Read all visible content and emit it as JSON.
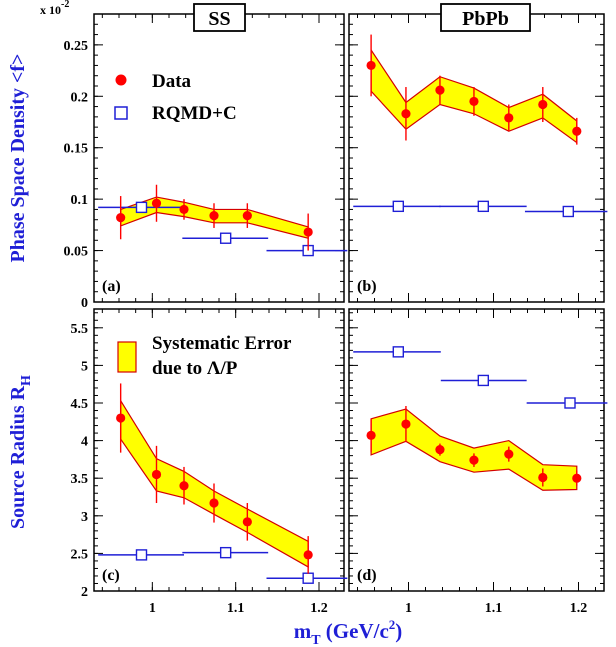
{
  "chart_data": {
    "type": "scatter",
    "xlabel": "m",
    "xlabel_sub": "T",
    "xlabel_unit_pre": " (GeV/c",
    "xlabel_unit_sup": "2",
    "xlabel_unit_post": ")",
    "xlim": [
      0.93,
      1.23
    ],
    "xticks": [
      1,
      1.1,
      1.2
    ],
    "xtick_labels": [
      "1",
      "1.1",
      "1.2"
    ],
    "columns": [
      {
        "title": "SS"
      },
      {
        "title": "PbPb"
      }
    ],
    "rows": [
      {
        "ylabel": "Phase Space Density <f>",
        "scale_note_prefix": "x 10",
        "scale_note_exp": "-2",
        "ylim": [
          0,
          0.28
        ],
        "yticks": [
          0,
          0.05,
          0.1,
          0.15,
          0.2,
          0.25
        ],
        "ytick_labels": [
          "0",
          "0.05",
          "0.1",
          "0.15",
          "0.2",
          "0.25"
        ]
      },
      {
        "ylabel": "Source Radius R",
        "ylabel_sub": "H",
        "ylim": [
          2,
          5.75
        ],
        "yticks": [
          2,
          2.5,
          3,
          3.5,
          4,
          4.5,
          5,
          5.5
        ],
        "ytick_labels": [
          "2",
          "2.5",
          "3",
          "3.5",
          "4",
          "4.5",
          "5",
          "5.5"
        ]
      }
    ],
    "legends": {
      "top": [
        {
          "label": "Data",
          "marker": "red-circle"
        },
        {
          "label": "RQMD+C",
          "marker": "open-blue-square"
        }
      ],
      "bottom": [
        {
          "label_line1": "Systematic Error",
          "label_line2": "due to Λ/P",
          "marker": "yellow-band"
        }
      ]
    },
    "panels": [
      {
        "id": "a",
        "tag": "(a)",
        "row": 0,
        "col": 0,
        "data": {
          "x": [
            0.962,
            1.005,
            1.038,
            1.074,
            1.114,
            1.187
          ],
          "y": [
            0.082,
            0.096,
            0.09,
            0.084,
            0.084,
            0.068
          ],
          "err": [
            0.021,
            0.018,
            0.01,
            0.012,
            0.012,
            0.018
          ]
        },
        "band": {
          "x": [
            0.962,
            1.005,
            1.038,
            1.074,
            1.114,
            1.187
          ],
          "lo": [
            0.074,
            0.087,
            0.083,
            0.077,
            0.077,
            0.062
          ],
          "hi": [
            0.09,
            0.102,
            0.097,
            0.09,
            0.09,
            0.073
          ]
        },
        "model": {
          "x": [
            0.987,
            1.088,
            1.187
          ],
          "y": [
            0.092,
            0.062,
            0.05
          ],
          "xlo": [
            0.935,
            1.036,
            1.137
          ],
          "xhi": [
            1.038,
            1.139,
            1.234
          ]
        }
      },
      {
        "id": "b",
        "tag": "(b)",
        "row": 0,
        "col": 1,
        "data": {
          "x": [
            0.956,
            0.997,
            1.037,
            1.077,
            1.118,
            1.158,
            1.198
          ],
          "y": [
            0.23,
            0.183,
            0.206,
            0.195,
            0.179,
            0.192,
            0.166
          ],
          "err": [
            0.03,
            0.026,
            0.014,
            0.014,
            0.013,
            0.017,
            0.013
          ]
        },
        "band": {
          "x": [
            0.956,
            0.997,
            1.037,
            1.077,
            1.118,
            1.158,
            1.198
          ],
          "lo": [
            0.205,
            0.168,
            0.192,
            0.183,
            0.166,
            0.179,
            0.155
          ],
          "hi": [
            0.245,
            0.194,
            0.219,
            0.208,
            0.189,
            0.202,
            0.176
          ]
        },
        "model": {
          "x": [
            0.988,
            1.088,
            1.188
          ],
          "y": [
            0.093,
            0.093,
            0.088
          ],
          "xlo": [
            0.935,
            1.036,
            1.137
          ],
          "xhi": [
            1.038,
            1.139,
            1.234
          ]
        }
      },
      {
        "id": "c",
        "tag": "(c)",
        "row": 1,
        "col": 0,
        "data": {
          "x": [
            0.962,
            1.005,
            1.038,
            1.074,
            1.114,
            1.187
          ],
          "y": [
            4.3,
            3.55,
            3.4,
            3.17,
            2.92,
            2.48
          ],
          "err": [
            0.46,
            0.38,
            0.25,
            0.26,
            0.25,
            0.25
          ]
        },
        "band": {
          "x": [
            0.962,
            1.005,
            1.038,
            1.074,
            1.114,
            1.187
          ],
          "lo": [
            4.02,
            3.33,
            3.24,
            3.02,
            2.78,
            2.32
          ],
          "hi": [
            4.53,
            3.76,
            3.59,
            3.33,
            3.09,
            2.66
          ]
        },
        "model": {
          "x": [
            0.987,
            1.088,
            1.187
          ],
          "y": [
            2.48,
            2.51,
            2.17
          ],
          "xlo": [
            0.935,
            1.036,
            1.137
          ],
          "xhi": [
            1.038,
            1.139,
            1.234
          ]
        }
      },
      {
        "id": "d",
        "tag": "(d)",
        "row": 1,
        "col": 1,
        "data": {
          "x": [
            0.956,
            0.997,
            1.037,
            1.077,
            1.118,
            1.158,
            1.198
          ],
          "y": [
            4.07,
            4.22,
            3.88,
            3.74,
            3.82,
            3.51,
            3.5
          ],
          "err": [
            0.22,
            0.24,
            0.08,
            0.09,
            0.1,
            0.12,
            0.1
          ]
        },
        "band": {
          "x": [
            0.956,
            0.997,
            1.037,
            1.077,
            1.118,
            1.158,
            1.198
          ],
          "lo": [
            3.81,
            3.99,
            3.72,
            3.58,
            3.62,
            3.34,
            3.35
          ],
          "hi": [
            4.29,
            4.42,
            4.06,
            3.9,
            4.0,
            3.68,
            3.66
          ]
        },
        "model": {
          "x": [
            0.988,
            1.088,
            1.19
          ],
          "y": [
            5.18,
            4.8,
            4.5
          ],
          "xlo": [
            0.935,
            1.038,
            1.139
          ],
          "xhi": [
            1.038,
            1.139,
            1.234
          ]
        }
      }
    ],
    "colors": {
      "data": "#ff0000",
      "band_fill": "#ffff00",
      "band_edge": "#d40000",
      "model": "#1f1fd6",
      "axis_label": "#1f1fd6",
      "frame": "#000000"
    }
  }
}
